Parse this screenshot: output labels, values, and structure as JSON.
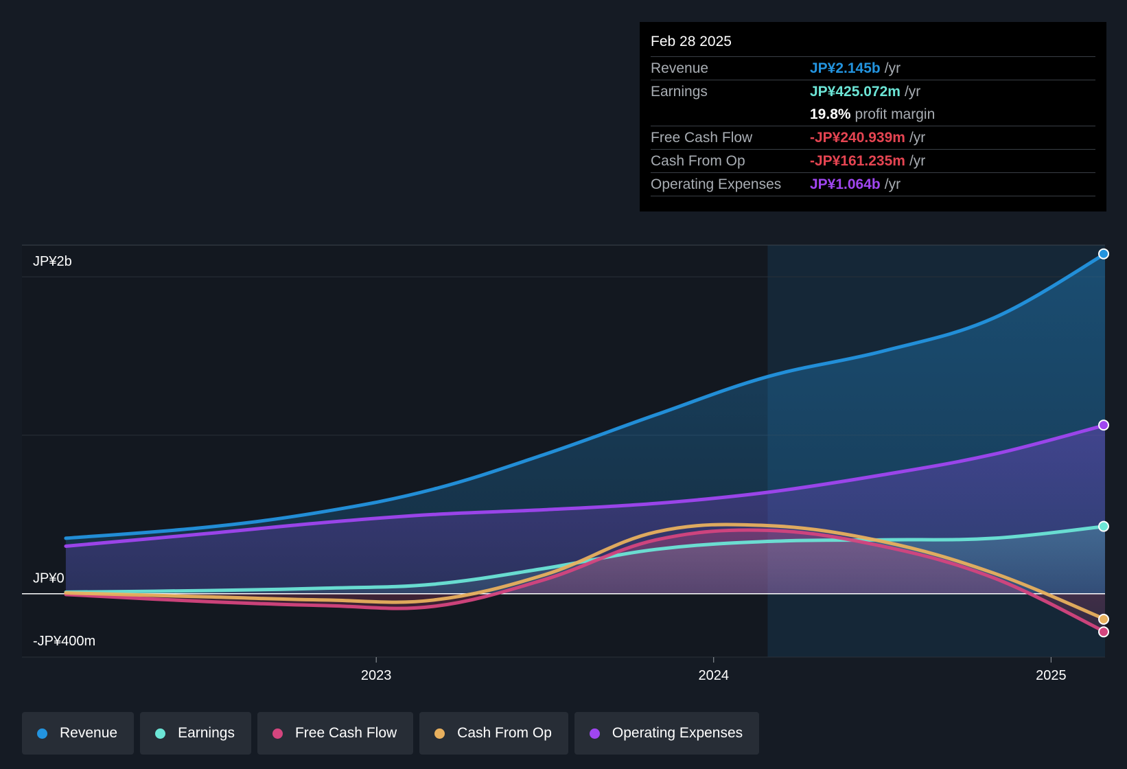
{
  "tooltip": {
    "date": "Feb 28 2025",
    "rows": [
      {
        "label": "Revenue",
        "value": "JP¥2.145b",
        "unit": "/yr",
        "color": "#2394df"
      },
      {
        "label": "Earnings",
        "value": "JP¥425.072m",
        "unit": "/yr",
        "color": "#6ce5d6"
      },
      {
        "label": "",
        "value": "19.8%",
        "unit": "profit margin",
        "color": "#ffffff"
      },
      {
        "label": "Free Cash Flow",
        "value": "-JP¥240.939m",
        "unit": "/yr",
        "color": "#e64552"
      },
      {
        "label": "Cash From Op",
        "value": "-JP¥161.235m",
        "unit": "/yr",
        "color": "#e64552"
      },
      {
        "label": "Operating Expenses",
        "value": "JP¥1.064b",
        "unit": "/yr",
        "color": "#a046f0"
      }
    ]
  },
  "legend": [
    {
      "label": "Revenue",
      "color": "#2394df"
    },
    {
      "label": "Earnings",
      "color": "#6ce5d6"
    },
    {
      "label": "Free Cash Flow",
      "color": "#d4457e"
    },
    {
      "label": "Cash From Op",
      "color": "#e8b05e"
    },
    {
      "label": "Operating Expenses",
      "color": "#a046f0"
    }
  ],
  "chart_data": {
    "type": "area",
    "y_tick_labels": [
      {
        "value": 2000,
        "label": "JP¥2b"
      },
      {
        "value": 0,
        "label": "JP¥0"
      },
      {
        "value": -400,
        "label": "-JP¥400m"
      }
    ],
    "ylim": [
      -400,
      2200
    ],
    "x_tick_labels": [
      {
        "value": 2023.0,
        "label": "2023"
      },
      {
        "value": 2024.0,
        "label": "2024"
      },
      {
        "value": 2025.0,
        "label": "2025"
      }
    ],
    "xlim": [
      2021.95,
      2025.16
    ],
    "highlight_start": 2024.16,
    "series": [
      {
        "name": "Revenue",
        "color": "#2394df",
        "x": [
          2022.08,
          2022.5,
          2022.85,
          2023.17,
          2023.5,
          2023.83,
          2024.16,
          2024.5,
          2024.83,
          2025.16
        ],
        "values": [
          350,
          420,
          520,
          660,
          880,
          1130,
          1370,
          1530,
          1740,
          2145
        ]
      },
      {
        "name": "Earnings",
        "color": "#6ce5d6",
        "x": [
          2022.08,
          2022.5,
          2022.85,
          2023.17,
          2023.5,
          2023.83,
          2024.16,
          2024.5,
          2024.83,
          2025.16
        ],
        "values": [
          10,
          20,
          35,
          60,
          160,
          280,
          330,
          340,
          350,
          425
        ]
      },
      {
        "name": "Free Cash Flow",
        "color": "#d4457e",
        "x": [
          2022.08,
          2022.5,
          2022.85,
          2023.17,
          2023.5,
          2023.83,
          2024.16,
          2024.5,
          2024.83,
          2025.16
        ],
        "values": [
          -5,
          -50,
          -75,
          -80,
          90,
          340,
          400,
          300,
          100,
          -240.939
        ]
      },
      {
        "name": "Cash From Op",
        "color": "#e8b05e",
        "x": [
          2022.08,
          2022.5,
          2022.85,
          2023.17,
          2023.5,
          2023.83,
          2024.16,
          2024.5,
          2024.83,
          2025.16
        ],
        "values": [
          5,
          -20,
          -40,
          -40,
          120,
          390,
          430,
          330,
          130,
          -161.235
        ]
      },
      {
        "name": "Operating Expenses",
        "color": "#a046f0",
        "x": [
          2022.08,
          2022.5,
          2022.85,
          2023.17,
          2023.5,
          2023.83,
          2024.16,
          2024.5,
          2024.83,
          2025.16
        ],
        "values": [
          300,
          380,
          450,
          500,
          530,
          570,
          640,
          750,
          880,
          1064
        ]
      }
    ]
  }
}
